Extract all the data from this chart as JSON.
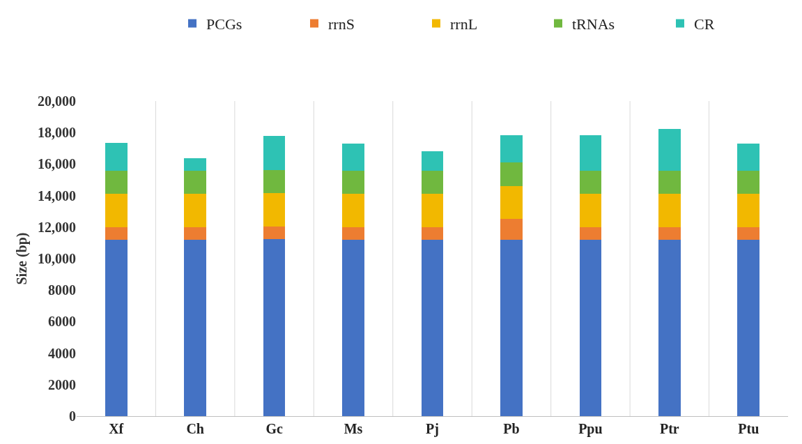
{
  "chart_data": {
    "type": "bar",
    "stacked": true,
    "ylabel": "Size (bp)",
    "categories": [
      "Xf",
      "Ch",
      "Gc",
      "Ms",
      "Pj",
      "Pb",
      "Ppu",
      "Ptr",
      "Ptu"
    ],
    "series": [
      {
        "name": "PCGs",
        "color": "#4472c4",
        "values": [
          11200,
          11200,
          11250,
          11200,
          11200,
          11200,
          11200,
          11200,
          11200
        ]
      },
      {
        "name": "rrnS",
        "color": "#ed7d31",
        "values": [
          800,
          800,
          800,
          800,
          800,
          1320,
          800,
          800,
          800
        ]
      },
      {
        "name": "rrnL",
        "color": "#f2b800",
        "values": [
          2100,
          2100,
          2100,
          2100,
          2100,
          2070,
          2100,
          2100,
          2100
        ]
      },
      {
        "name": "tRNAs",
        "color": "#70b83f",
        "values": [
          1470,
          1470,
          1470,
          1470,
          1470,
          1510,
          1470,
          1470,
          1470
        ]
      },
      {
        "name": "CR",
        "color": "#2ec2b4",
        "values": [
          1790,
          810,
          2180,
          1710,
          1260,
          1750,
          2280,
          2640,
          1710
        ]
      }
    ],
    "ylim": [
      0,
      20000
    ],
    "yticks": [
      0,
      2000,
      4000,
      6000,
      8000,
      {
        "value": 10000,
        "label": "10,000"
      },
      {
        "value": 12000,
        "label": "12,000"
      },
      {
        "value": 14000,
        "label": "14,000"
      },
      {
        "value": 16000,
        "label": "16,000"
      },
      {
        "value": 18000,
        "label": "18,000"
      },
      {
        "value": 20000,
        "label": "20,000"
      }
    ],
    "grid": "x",
    "legend": "top right"
  }
}
